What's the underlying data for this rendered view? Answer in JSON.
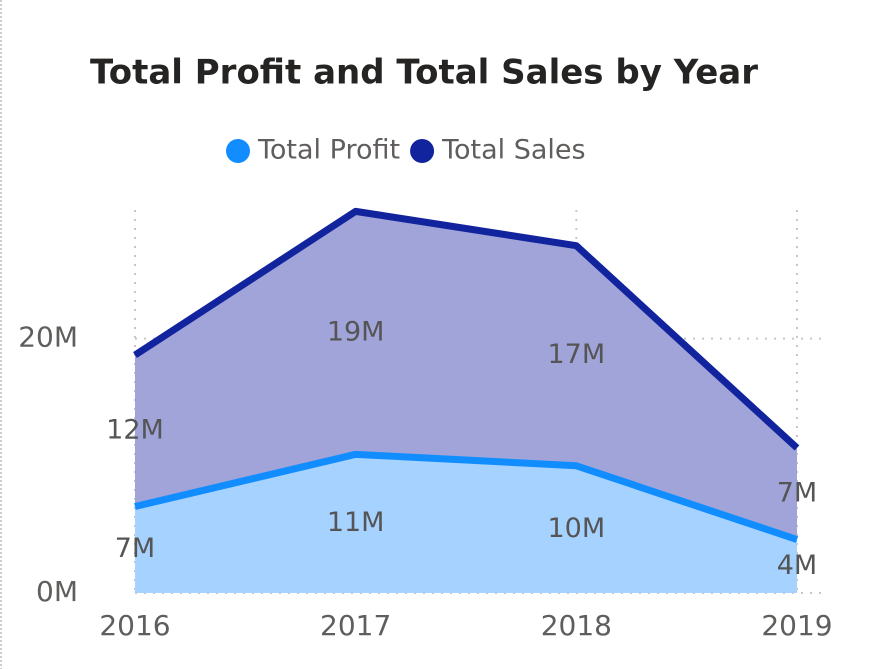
{
  "chart_data": {
    "type": "stacked_area",
    "title": "Total Profit and Total Sales by Year",
    "categories": [
      "2016",
      "2017",
      "2018",
      "2019"
    ],
    "series": [
      {
        "name": "Total Profit",
        "color": "#118DFF",
        "fill": "#A6D2FF",
        "values": [
          6800000,
          10900000,
          10000000,
          4200000
        ],
        "value_labels": [
          "7M",
          "11M",
          "10M",
          "4M"
        ]
      },
      {
        "name": "Total Sales",
        "color": "#12239E",
        "fill": "#A0A4D9",
        "values": [
          11900000,
          19100000,
          17300000,
          7200000
        ],
        "value_labels": [
          "12M",
          "19M",
          "17M",
          "7M"
        ]
      }
    ],
    "ylim": [
      0,
      30500000
    ],
    "yticks": [
      {
        "value": 0,
        "label": "0M"
      },
      {
        "value": 20000000,
        "label": "20M"
      }
    ],
    "grid": true,
    "legend": "top"
  }
}
